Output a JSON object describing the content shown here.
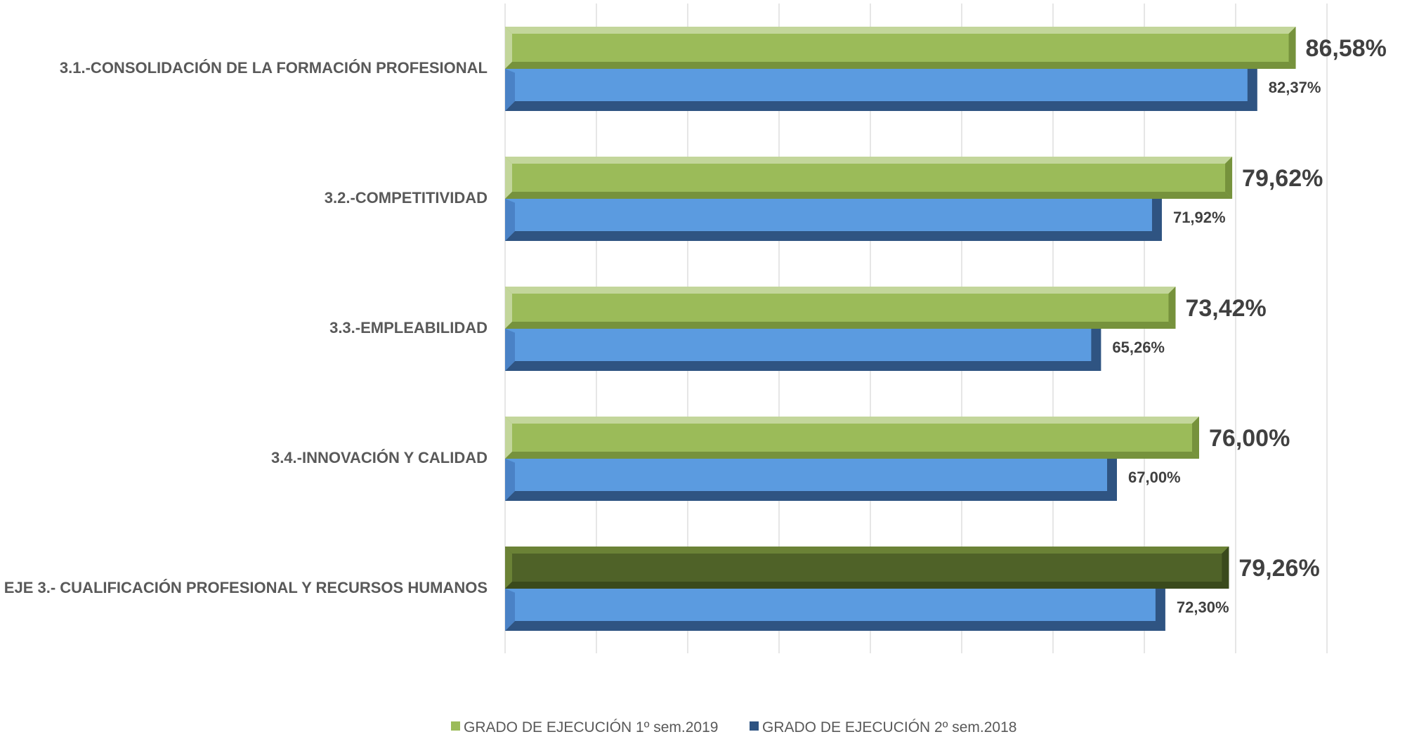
{
  "chart_data": {
    "type": "bar",
    "orientation": "horizontal",
    "categories": [
      "3.1.-CONSOLIDACIÓN DE LA FORMACIÓN PROFESIONAL",
      "3.2.-COMPETITIVIDAD",
      "3.3.-EMPLEABILIDAD",
      "3.4.-INNOVACIÓN Y CALIDAD",
      "EJE 3.- CUALIFICACIÓN PROFESIONAL Y RECURSOS HUMANOS"
    ],
    "series": [
      {
        "name": "GRADO DE EJECUCIÓN 1º sem.2019",
        "values": [
          86.58,
          79.62,
          73.42,
          76.0,
          79.26
        ],
        "labels": [
          "86,58%",
          "79,62%",
          "73,42%",
          "76,00%",
          "79,26%"
        ],
        "color": "#9BBB59",
        "highlight_color": "#4F6228"
      },
      {
        "name": "GRADO DE EJECUCIÓN 2º sem.2018",
        "values": [
          82.37,
          71.92,
          65.26,
          67.0,
          72.3
        ],
        "labels": [
          "82,37%",
          "71,92%",
          "65,26%",
          "67,00%",
          "72,30%"
        ],
        "color": "#5B9BE0",
        "shade_color": "#2F5482"
      }
    ],
    "xlim": [
      0,
      90
    ],
    "grid": true,
    "legend_position": "bottom",
    "title": "",
    "xlabel": "",
    "ylabel": ""
  }
}
